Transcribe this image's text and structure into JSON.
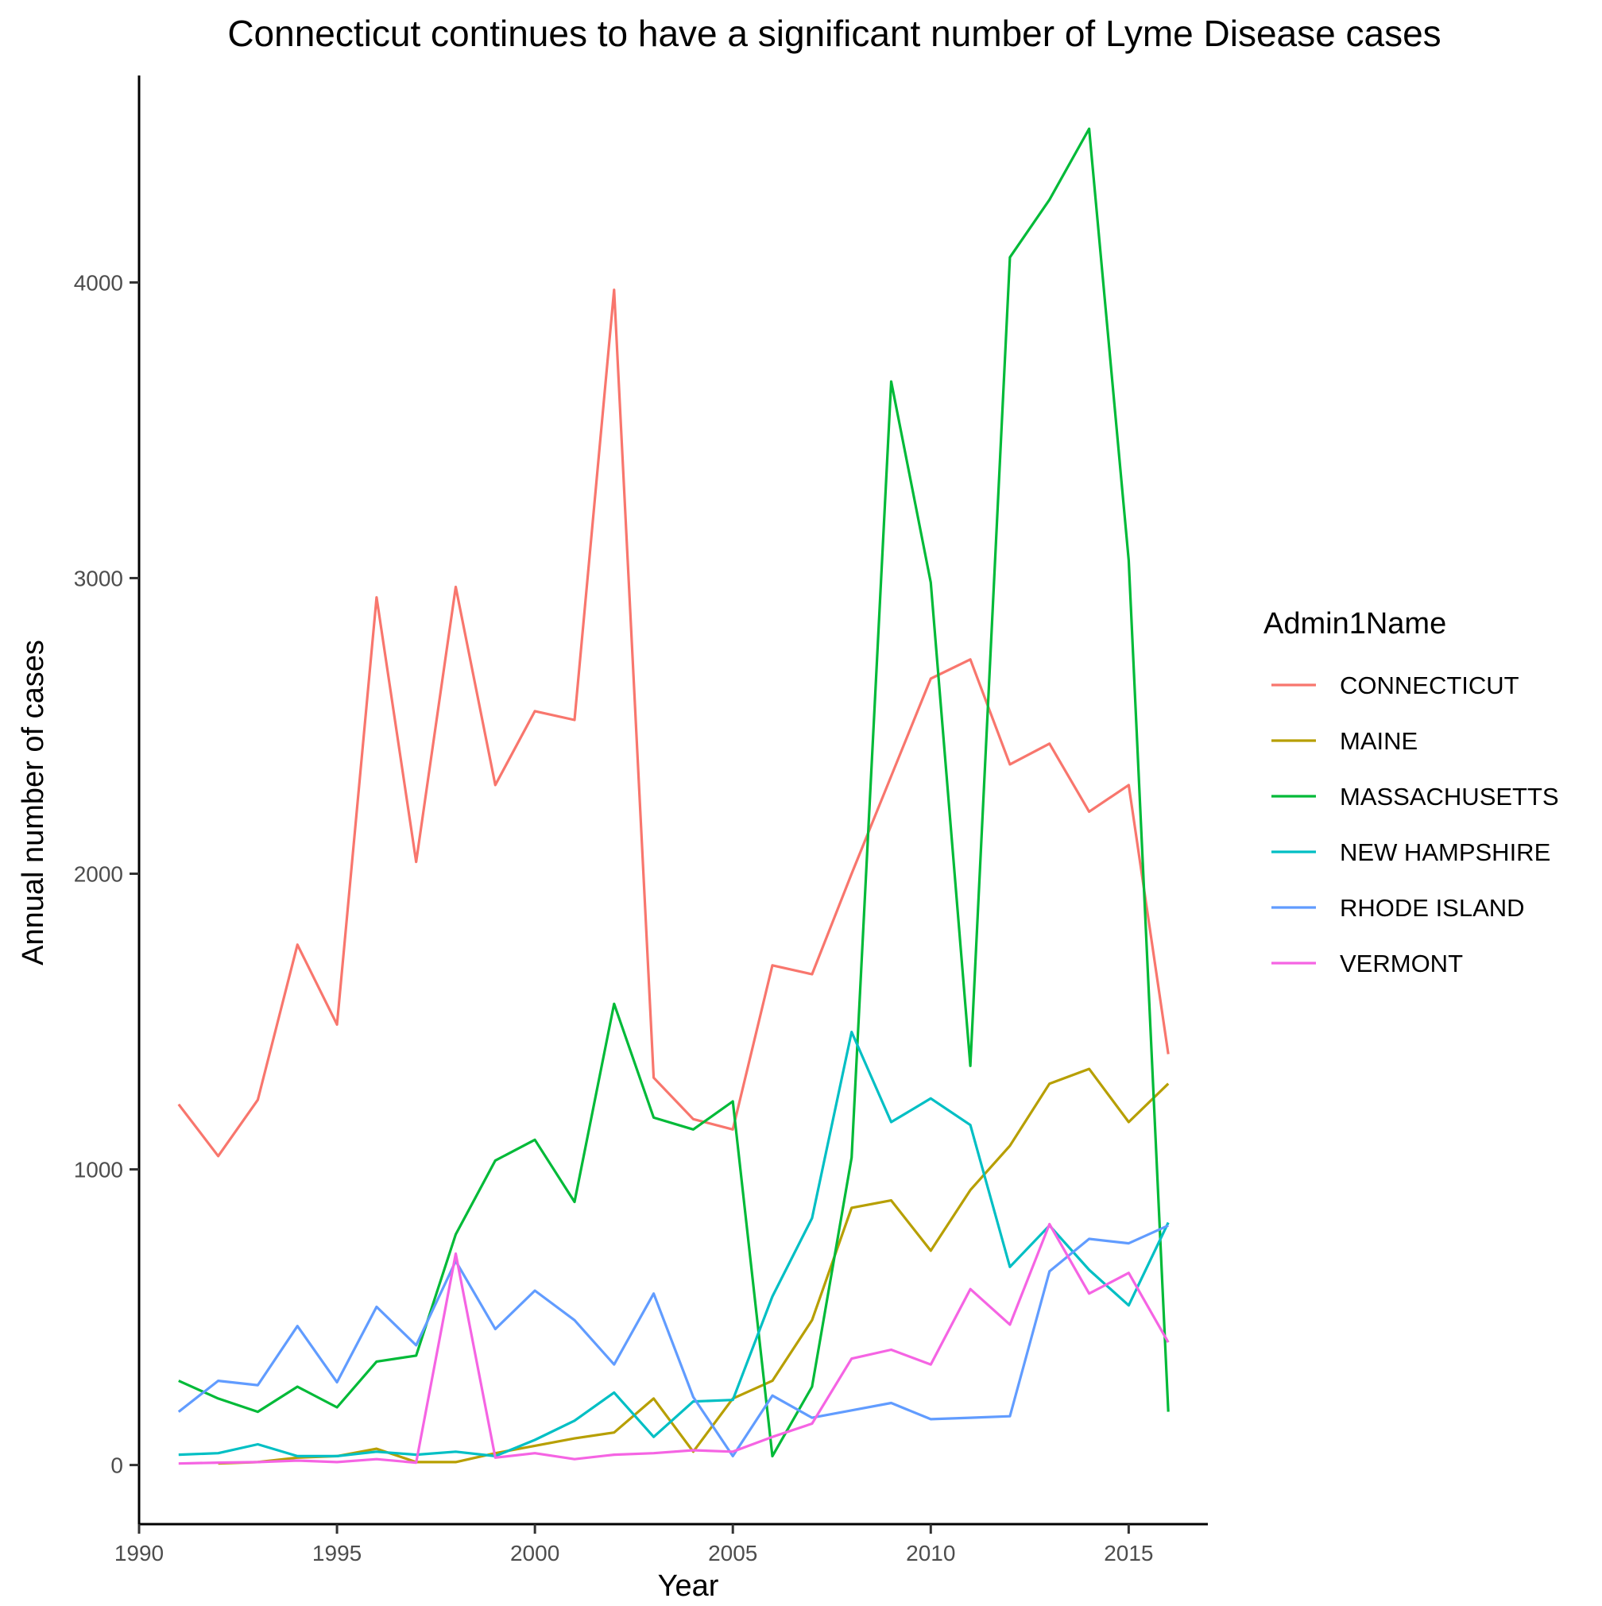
{
  "chart_data": {
    "type": "line",
    "title": "Connecticut continues to have a significant number of Lyme Disease cases",
    "xlabel": "Year",
    "ylabel": "Annual number of cases",
    "xlim": [
      1990,
      2017
    ],
    "ylim": [
      -200,
      4700
    ],
    "xticks": [
      1990,
      1995,
      2000,
      2005,
      2010,
      2015
    ],
    "yticks": [
      0,
      1000,
      2000,
      3000,
      4000
    ],
    "grid": false,
    "legend": {
      "title": "Admin1Name",
      "position": "right"
    },
    "series": [
      {
        "name": "CONNECTICUT",
        "color": "#F8766D",
        "x": [
          1991,
          1992,
          1993,
          1994,
          1995,
          1996,
          1997,
          1998,
          1999,
          2000,
          2001,
          2002,
          2003,
          2004,
          2005,
          2006,
          2007,
          2008,
          2009,
          2010,
          2011,
          2012,
          2013,
          2014,
          2015,
          2016
        ],
        "values": [
          1220,
          1045,
          1235,
          1760,
          1490,
          2935,
          2040,
          2970,
          2300,
          2550,
          2520,
          3975,
          1310,
          1170,
          1135,
          1690,
          1660,
          2000,
          2330,
          2660,
          2725,
          2370,
          2440,
          2210,
          2300,
          1390
        ]
      },
      {
        "name": "MAINE",
        "color": "#B79F00",
        "x": [
          1992,
          1993,
          1994,
          1995,
          1996,
          1997,
          1998,
          1999,
          2000,
          2001,
          2002,
          2003,
          2004,
          2005,
          2006,
          2007,
          2008,
          2009,
          2010,
          2011,
          2012,
          2013,
          2014,
          2015,
          2016
        ],
        "values": [
          5,
          10,
          25,
          30,
          55,
          10,
          10,
          40,
          65,
          90,
          110,
          225,
          45,
          225,
          285,
          490,
          870,
          895,
          725,
          930,
          1080,
          1290,
          1340,
          1160,
          1290
        ]
      },
      {
        "name": "MASSACHUSETTS",
        "color": "#00BA38",
        "x": [
          1991,
          1992,
          1993,
          1994,
          1995,
          1996,
          1997,
          1998,
          1999,
          2000,
          2001,
          2002,
          2003,
          2004,
          2005,
          2006,
          2007,
          2008,
          2009,
          2010,
          2011,
          2012,
          2013,
          2014,
          2015,
          2016
        ],
        "values": [
          285,
          225,
          180,
          265,
          195,
          350,
          370,
          780,
          1030,
          1100,
          890,
          1560,
          1175,
          1135,
          1230,
          30,
          265,
          1040,
          3665,
          2985,
          1350,
          4085,
          4280,
          4520,
          3060,
          180
        ]
      },
      {
        "name": "NEW HAMPSHIRE",
        "color": "#00BFC4",
        "x": [
          1991,
          1992,
          1993,
          1994,
          1995,
          1996,
          1997,
          1998,
          1999,
          2000,
          2001,
          2002,
          2003,
          2004,
          2005,
          2006,
          2007,
          2008,
          2009,
          2010,
          2011,
          2012,
          2013,
          2014,
          2015,
          2016
        ],
        "values": [
          35,
          40,
          70,
          30,
          30,
          45,
          35,
          45,
          30,
          85,
          150,
          245,
          95,
          215,
          220,
          570,
          835,
          1465,
          1160,
          1240,
          1150,
          670,
          810,
          660,
          540,
          820
        ]
      },
      {
        "name": "RHODE ISLAND",
        "color": "#619CFF",
        "x": [
          1991,
          1992,
          1993,
          1994,
          1995,
          1996,
          1997,
          1998,
          1999,
          2000,
          2001,
          2002,
          2003,
          2004,
          2005,
          2006,
          2007,
          2008,
          2009,
          2010,
          2011,
          2012,
          2013,
          2014,
          2015,
          2016
        ],
        "values": [
          180,
          285,
          270,
          470,
          280,
          535,
          405,
          690,
          460,
          590,
          490,
          340,
          580,
          230,
          30,
          235,
          160,
          185,
          210,
          155,
          160,
          165,
          655,
          765,
          750,
          810
        ]
      },
      {
        "name": "VERMONT",
        "color": "#F564E3",
        "x": [
          1991,
          1992,
          1993,
          1994,
          1995,
          1996,
          1997,
          1998,
          1999,
          2000,
          2001,
          2002,
          2003,
          2004,
          2005,
          2006,
          2007,
          2008,
          2009,
          2010,
          2011,
          2012,
          2013,
          2014,
          2015,
          2016
        ],
        "values": [
          5,
          8,
          10,
          15,
          10,
          20,
          8,
          715,
          25,
          40,
          20,
          35,
          40,
          50,
          45,
          95,
          140,
          360,
          390,
          340,
          595,
          475,
          815,
          580,
          650,
          415
        ]
      }
    ]
  }
}
